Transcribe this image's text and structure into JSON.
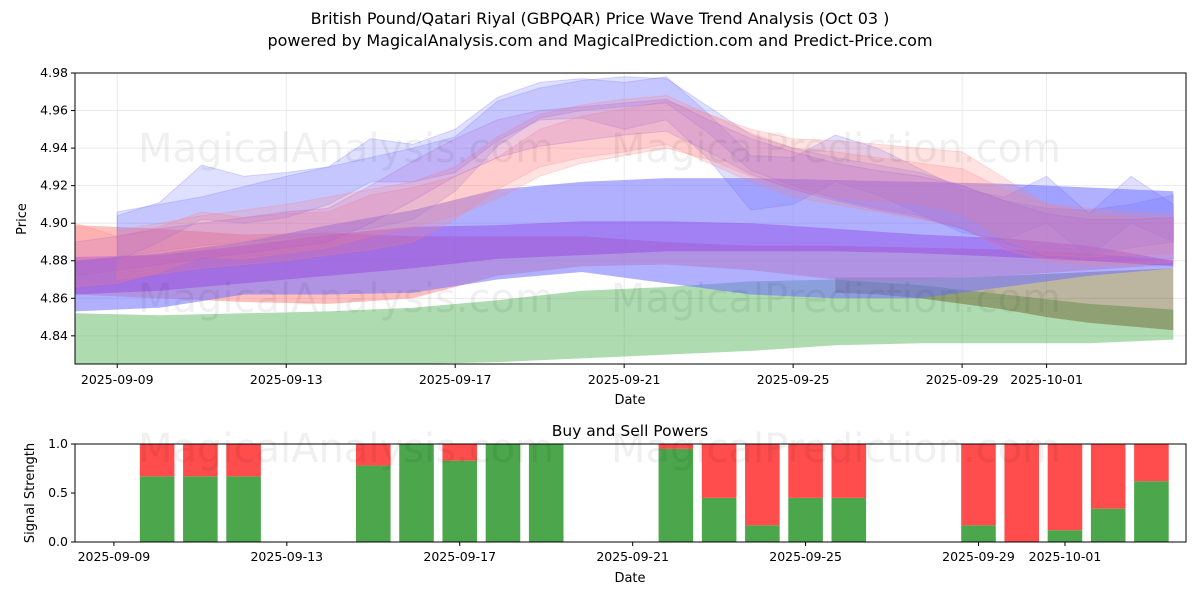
{
  "header": {
    "title_line1": "British Pound/Qatari Riyal (GBPQAR) Price Wave Trend Analysis (Oct 03 )",
    "title_line2": "powered by MagicalAnalysis.com and MagicalPrediction.com and Predict-Price.com"
  },
  "watermarks": [
    "MagicalAnalysis.com",
    "MagicalPrediction.com"
  ],
  "colors": {
    "blue": "#6f6fff",
    "red": "#ff8080",
    "green": "#4caf50",
    "sell_red": "#ff4c4c",
    "buy_green": "#4ca64c"
  },
  "chart_data": [
    {
      "type": "area",
      "title": "",
      "xlabel": "Date",
      "ylabel": "Price",
      "ylim": [
        4.825,
        4.98
      ],
      "xlim": [
        0,
        26.3
      ],
      "x_origin_date": "2025-09-08",
      "x_ticks": [
        {
          "x": 1,
          "label": "2025-09-09"
        },
        {
          "x": 5,
          "label": "2025-09-13"
        },
        {
          "x": 9,
          "label": "2025-09-17"
        },
        {
          "x": 13,
          "label": "2025-09-21"
        },
        {
          "x": 17,
          "label": "2025-09-25"
        },
        {
          "x": 21,
          "label": "2025-09-29"
        },
        {
          "x": 23,
          "label": "2025-10-01"
        }
      ],
      "y_ticks": [
        4.84,
        4.86,
        4.88,
        4.9,
        4.92,
        4.94,
        4.96,
        4.98
      ],
      "grid": true,
      "bands": [
        {
          "name": "green long-term band",
          "color": "green",
          "x": [
            0,
            2,
            4,
            6,
            8,
            10,
            12,
            14,
            16,
            18,
            20,
            22,
            24,
            26
          ],
          "upper": [
            4.852,
            4.851,
            4.852,
            4.853,
            4.855,
            4.859,
            4.864,
            4.866,
            4.869,
            4.87,
            4.867,
            4.862,
            4.857,
            4.854
          ],
          "lower": [
            4.822,
            4.823,
            4.823,
            4.824,
            4.825,
            4.826,
            4.828,
            4.83,
            4.832,
            4.835,
            4.836,
            4.836,
            4.836,
            4.838
          ]
        },
        {
          "name": "olive band",
          "color": "olive",
          "x": [
            18,
            19,
            20,
            21,
            22,
            23,
            24,
            25,
            26
          ],
          "upper": [
            4.871,
            4.871,
            4.871,
            4.871,
            4.872,
            4.873,
            4.874,
            4.875,
            4.876
          ],
          "lower": [
            4.863,
            4.862,
            4.86,
            4.857,
            4.854,
            4.85,
            4.847,
            4.845,
            4.843
          ]
        },
        {
          "name": "red long-term band",
          "color": "red",
          "x": [
            0,
            2,
            4,
            6,
            8,
            10,
            12,
            14,
            16,
            18,
            20,
            22,
            24,
            26
          ],
          "upper": [
            4.899,
            4.897,
            4.894,
            4.895,
            4.893,
            4.893,
            4.893,
            4.89,
            4.888,
            4.888,
            4.887,
            4.886,
            4.884,
            4.88
          ],
          "lower": [
            4.862,
            4.86,
            4.858,
            4.857,
            4.86,
            4.872,
            4.877,
            4.878,
            4.875,
            4.87,
            4.87,
            4.872,
            4.875,
            4.878
          ]
        },
        {
          "name": "blue long-term band",
          "color": "blue",
          "x": [
            0,
            2,
            4,
            6,
            8,
            10,
            12,
            14,
            16,
            18,
            20,
            22,
            24,
            26
          ],
          "upper": [
            4.88,
            4.884,
            4.89,
            4.899,
            4.907,
            4.918,
            4.922,
            4.924,
            4.924,
            4.923,
            4.922,
            4.921,
            4.919,
            4.917
          ],
          "lower": [
            4.853,
            4.855,
            4.862,
            4.862,
            4.863,
            4.87,
            4.874,
            4.868,
            4.862,
            4.86,
            4.86,
            4.866,
            4.872,
            4.876
          ]
        },
        {
          "name": "purple mid band",
          "color": "purple",
          "x": [
            0,
            2,
            4,
            6,
            8,
            10,
            12,
            14,
            16,
            18,
            20,
            22,
            24,
            26
          ],
          "upper": [
            4.882,
            4.883,
            4.888,
            4.894,
            4.898,
            4.899,
            4.901,
            4.901,
            4.9,
            4.897,
            4.894,
            4.892,
            4.888,
            4.88
          ],
          "lower": [
            4.862,
            4.864,
            4.868,
            4.872,
            4.876,
            4.881,
            4.883,
            4.885,
            4.885,
            4.885,
            4.884,
            4.882,
            4.88,
            4.877
          ]
        }
      ],
      "waves": [
        {
          "name": "blue wave 1",
          "color": "blue",
          "x": [
            1,
            3,
            5,
            7,
            8,
            9,
            10,
            11,
            12,
            13,
            14,
            15,
            16,
            17,
            18,
            19,
            20,
            21,
            22,
            23,
            24,
            25,
            26
          ],
          "upper": [
            4.906,
            4.914,
            4.925,
            4.935,
            4.94,
            4.946,
            4.965,
            4.972,
            4.976,
            4.978,
            4.977,
            4.962,
            4.947,
            4.94,
            4.935,
            4.931,
            4.927,
            4.92,
            4.912,
            4.908,
            4.907,
            4.91,
            4.915
          ],
          "lower": [
            4.882,
            4.888,
            4.892,
            4.897,
            4.902,
            4.917,
            4.941,
            4.956,
            4.96,
            4.962,
            4.964,
            4.948,
            4.928,
            4.92,
            4.913,
            4.908,
            4.904,
            4.897,
            4.889,
            4.884,
            4.883,
            4.887,
            4.89
          ]
        },
        {
          "name": "blue wave 2",
          "color": "blue",
          "x": [
            1,
            2,
            3,
            4,
            5,
            6,
            7,
            8,
            9,
            10,
            11,
            12,
            13,
            14,
            15,
            16,
            17,
            18,
            19,
            20,
            21,
            22,
            23,
            24,
            25,
            26
          ],
          "upper": [
            4.904,
            4.911,
            4.931,
            4.925,
            4.927,
            4.93,
            4.945,
            4.942,
            4.95,
            4.967,
            4.975,
            4.977,
            4.975,
            4.978,
            4.958,
            4.936,
            4.935,
            4.947,
            4.94,
            4.929,
            4.918,
            4.914,
            4.925,
            4.905,
            4.925,
            4.91
          ],
          "lower": [
            4.88,
            4.89,
            4.902,
            4.9,
            4.903,
            4.91,
            4.922,
            4.922,
            4.927,
            4.944,
            4.955,
            4.956,
            4.95,
            4.955,
            4.934,
            4.907,
            4.91,
            4.922,
            4.915,
            4.905,
            4.895,
            4.891,
            4.9,
            4.882,
            4.9,
            4.89
          ]
        },
        {
          "name": "red wave 1",
          "color": "red",
          "x": [
            1,
            3,
            5,
            7,
            8,
            9,
            10,
            11,
            12,
            13,
            14,
            15,
            16,
            17,
            18,
            19,
            20,
            21,
            22,
            23,
            24,
            25,
            26
          ],
          "upper": [
            4.896,
            4.904,
            4.91,
            4.918,
            4.922,
            4.93,
            4.946,
            4.958,
            4.963,
            4.966,
            4.968,
            4.958,
            4.948,
            4.94,
            4.938,
            4.935,
            4.932,
            4.929,
            4.918,
            4.91,
            4.905,
            4.903,
            4.902
          ],
          "lower": [
            4.87,
            4.876,
            4.88,
            4.886,
            4.89,
            4.902,
            4.918,
            4.93,
            4.935,
            4.938,
            4.942,
            4.932,
            4.922,
            4.914,
            4.91,
            4.906,
            4.902,
            4.898,
            4.886,
            4.88,
            4.878,
            4.878,
            4.879
          ]
        },
        {
          "name": "red wave 2",
          "color": "red",
          "x": [
            0,
            1,
            2,
            3,
            4,
            5,
            6,
            7,
            8,
            9,
            10,
            11,
            12,
            13,
            14,
            15,
            16,
            17,
            18,
            19,
            20,
            21,
            22,
            23,
            24,
            25,
            26
          ],
          "upper": [
            4.9,
            4.893,
            4.898,
            4.906,
            4.903,
            4.905,
            4.906,
            4.915,
            4.919,
            4.925,
            4.935,
            4.95,
            4.957,
            4.961,
            4.965,
            4.958,
            4.95,
            4.945,
            4.944,
            4.942,
            4.94,
            4.938,
            4.924,
            4.91,
            4.908,
            4.906,
            4.905
          ],
          "lower": [
            4.866,
            4.868,
            4.874,
            4.882,
            4.881,
            4.884,
            4.887,
            4.893,
            4.898,
            4.904,
            4.913,
            4.925,
            4.932,
            4.936,
            4.94,
            4.934,
            4.925,
            4.918,
            4.914,
            4.912,
            4.91,
            4.905,
            4.891,
            4.883,
            4.882,
            4.883,
            4.884
          ]
        },
        {
          "name": "purple wave",
          "color": "purple",
          "x": [
            0,
            1,
            2,
            3,
            4,
            5,
            6,
            7,
            8,
            9,
            10,
            11,
            12,
            13,
            14,
            15,
            16,
            17,
            18,
            19,
            20,
            21,
            22,
            23,
            24,
            25,
            26
          ],
          "upper": [
            4.89,
            4.893,
            4.897,
            4.9,
            4.903,
            4.906,
            4.908,
            4.92,
            4.933,
            4.945,
            4.955,
            4.96,
            4.962,
            4.964,
            4.966,
            4.955,
            4.945,
            4.938,
            4.932,
            4.928,
            4.925,
            4.92,
            4.912,
            4.905,
            4.902,
            4.902,
            4.903
          ],
          "lower": [
            4.872,
            4.875,
            4.878,
            4.881,
            4.884,
            4.887,
            4.89,
            4.9,
            4.912,
            4.925,
            4.935,
            4.941,
            4.944,
            4.947,
            4.949,
            4.938,
            4.926,
            4.918,
            4.912,
            4.907,
            4.903,
            4.897,
            4.887,
            4.882,
            4.88,
            4.88,
            4.881
          ]
        }
      ]
    },
    {
      "type": "bar",
      "stacked": true,
      "title": "Buy and Sell Powers",
      "xlabel": "Date",
      "ylabel": "Signal Strength",
      "ylim": [
        0,
        1.0
      ],
      "xlim": [
        -0.9,
        24.8
      ],
      "x_origin_date": "2025-09-09",
      "x_ticks": [
        {
          "x": 0,
          "label": "2025-09-09"
        },
        {
          "x": 4,
          "label": "2025-09-13"
        },
        {
          "x": 8,
          "label": "2025-09-17"
        },
        {
          "x": 12,
          "label": "2025-09-21"
        },
        {
          "x": 16,
          "label": "2025-09-25"
        },
        {
          "x": 20,
          "label": "2025-09-29"
        },
        {
          "x": 22,
          "label": "2025-10-01"
        }
      ],
      "y_ticks": [
        0.0,
        0.5,
        1.0
      ],
      "y_tick_labels": [
        "0.0",
        "0.5",
        "1.0"
      ],
      "grid": false,
      "series": [
        {
          "name": "Buy",
          "color": "buy_green",
          "points": [
            {
              "x": 1,
              "value": 0.67
            },
            {
              "x": 2,
              "value": 0.67
            },
            {
              "x": 3,
              "value": 0.67
            },
            {
              "x": 6,
              "value": 0.78
            },
            {
              "x": 7,
              "value": 1.0
            },
            {
              "x": 8,
              "value": 0.83
            },
            {
              "x": 9,
              "value": 1.0
            },
            {
              "x": 10,
              "value": 1.0
            },
            {
              "x": 13,
              "value": 0.95
            },
            {
              "x": 14,
              "value": 0.45
            },
            {
              "x": 15,
              "value": 0.17
            },
            {
              "x": 16,
              "value": 0.45
            },
            {
              "x": 17,
              "value": 0.45
            },
            {
              "x": 20,
              "value": 0.17
            },
            {
              "x": 21,
              "value": 0.0
            },
            {
              "x": 22,
              "value": 0.12
            },
            {
              "x": 23,
              "value": 0.34
            },
            {
              "x": 24,
              "value": 0.62
            }
          ]
        },
        {
          "name": "Sell",
          "color": "sell_red",
          "points": [
            {
              "x": 1,
              "value": 0.33
            },
            {
              "x": 2,
              "value": 0.33
            },
            {
              "x": 3,
              "value": 0.33
            },
            {
              "x": 6,
              "value": 0.22
            },
            {
              "x": 7,
              "value": 0.0
            },
            {
              "x": 8,
              "value": 0.17
            },
            {
              "x": 9,
              "value": 0.0
            },
            {
              "x": 10,
              "value": 0.0
            },
            {
              "x": 13,
              "value": 0.05
            },
            {
              "x": 14,
              "value": 0.55
            },
            {
              "x": 15,
              "value": 0.83
            },
            {
              "x": 16,
              "value": 0.55
            },
            {
              "x": 17,
              "value": 0.55
            },
            {
              "x": 20,
              "value": 0.83
            },
            {
              "x": 21,
              "value": 1.0
            },
            {
              "x": 22,
              "value": 0.88
            },
            {
              "x": 23,
              "value": 0.66
            },
            {
              "x": 24,
              "value": 0.38
            }
          ]
        }
      ]
    }
  ]
}
